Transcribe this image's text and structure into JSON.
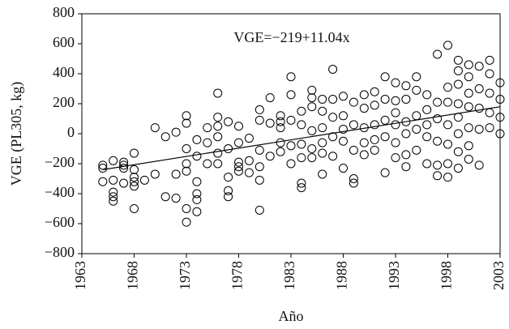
{
  "chart_data": {
    "type": "scatter",
    "ylabel": "VGE (PL305, kg)",
    "xlabel": "Año",
    "annotation": "VGE=−219+11.04x",
    "xlim": [
      1963,
      2003
    ],
    "ylim": [
      -800,
      800
    ],
    "xticks": [
      1963,
      1968,
      1973,
      1978,
      1983,
      1988,
      1993,
      1998,
      2003
    ],
    "yticks": [
      {
        "value": -800,
        "label": "−800"
      },
      {
        "value": -600,
        "label": "−600"
      },
      {
        "value": -400,
        "label": "−400"
      },
      {
        "value": -200,
        "label": "−200"
      },
      0,
      200,
      400,
      600,
      800
    ],
    "series": [
      {
        "type": "scatter",
        "color": "#000000",
        "x": [
          1965,
          1965,
          1965,
          1966,
          1966,
          1966,
          1966,
          1966,
          1967,
          1967,
          1967,
          1967,
          1968,
          1968,
          1968,
          1968,
          1968,
          1968,
          1969,
          1970,
          1970,
          1971,
          1971,
          1972,
          1972,
          1972,
          1973,
          1973,
          1973,
          1973,
          1973,
          1973,
          1973,
          1974,
          1974,
          1974,
          1974,
          1974,
          1974,
          1975,
          1975,
          1975,
          1976,
          1976,
          1976,
          1976,
          1976,
          1976,
          1977,
          1977,
          1977,
          1977,
          1977,
          1978,
          1978,
          1978,
          1978,
          1978,
          1979,
          1979,
          1979,
          1980,
          1980,
          1980,
          1980,
          1980,
          1980,
          1981,
          1981,
          1981,
          1982,
          1982,
          1982,
          1982,
          1982,
          1983,
          1983,
          1983,
          1983,
          1983,
          1984,
          1984,
          1984,
          1984,
          1984,
          1984,
          1985,
          1985,
          1985,
          1985,
          1985,
          1985,
          1986,
          1986,
          1986,
          1986,
          1986,
          1986,
          1987,
          1987,
          1987,
          1987,
          1987,
          1988,
          1988,
          1988,
          1988,
          1988,
          1989,
          1989,
          1989,
          1989,
          1989,
          1990,
          1990,
          1990,
          1990,
          1990,
          1991,
          1991,
          1991,
          1991,
          1991,
          1992,
          1992,
          1992,
          1992,
          1992,
          1993,
          1993,
          1993,
          1993,
          1993,
          1993,
          1994,
          1994,
          1994,
          1994,
          1994,
          1994,
          1995,
          1995,
          1995,
          1995,
          1995,
          1996,
          1996,
          1996,
          1996,
          1996,
          1997,
          1997,
          1997,
          1997,
          1997,
          1997,
          1998,
          1998,
          1998,
          1998,
          1998,
          1998,
          1998,
          1999,
          1999,
          1999,
          1999,
          1999,
          1999,
          1999,
          1999,
          2000,
          2000,
          2000,
          2000,
          2000,
          2000,
          2000,
          2001,
          2001,
          2001,
          2001,
          2001,
          2002,
          2002,
          2002,
          2002,
          2002,
          2003,
          2003,
          2003,
          2003
        ],
        "values": [
          -210,
          -230,
          -320,
          -180,
          -390,
          -420,
          -450,
          -310,
          -190,
          -210,
          -230,
          -330,
          -130,
          -290,
          -320,
          -350,
          -500,
          -240,
          -310,
          40,
          -270,
          -20,
          -420,
          10,
          -430,
          -270,
          120,
          70,
          -100,
          -200,
          -250,
          -500,
          -590,
          -40,
          -150,
          -320,
          -400,
          -440,
          -520,
          40,
          -60,
          -200,
          270,
          110,
          50,
          -20,
          -130,
          -200,
          80,
          -100,
          -290,
          -380,
          -420,
          50,
          -60,
          -190,
          -220,
          -250,
          -30,
          -180,
          -260,
          160,
          90,
          -110,
          -220,
          -310,
          -510,
          240,
          70,
          -150,
          120,
          80,
          40,
          -60,
          -120,
          380,
          260,
          90,
          -80,
          -200,
          150,
          60,
          -70,
          -160,
          -330,
          -360,
          290,
          240,
          180,
          20,
          -100,
          -160,
          230,
          150,
          40,
          -60,
          -130,
          -270,
          430,
          230,
          110,
          -20,
          -150,
          250,
          120,
          30,
          -50,
          -230,
          210,
          60,
          -110,
          -300,
          -330,
          260,
          170,
          40,
          -60,
          -140,
          280,
          190,
          60,
          -40,
          -110,
          380,
          230,
          90,
          -20,
          -260,
          340,
          220,
          140,
          60,
          -60,
          -160,
          320,
          230,
          80,
          0,
          -140,
          -220,
          380,
          290,
          120,
          30,
          -110,
          260,
          160,
          60,
          -20,
          -200,
          530,
          210,
          100,
          -50,
          -210,
          -280,
          590,
          310,
          210,
          60,
          -70,
          -200,
          -290,
          490,
          420,
          330,
          200,
          110,
          0,
          -120,
          -230,
          460,
          380,
          270,
          180,
          40,
          -80,
          -170,
          450,
          300,
          170,
          30,
          -210,
          490,
          400,
          270,
          140,
          40,
          340,
          230,
          110,
          0
        ]
      },
      {
        "type": "line",
        "color": "#000000",
        "x": [
          1965,
          2003
        ],
        "values": [
          -240,
          180
        ]
      }
    ]
  }
}
